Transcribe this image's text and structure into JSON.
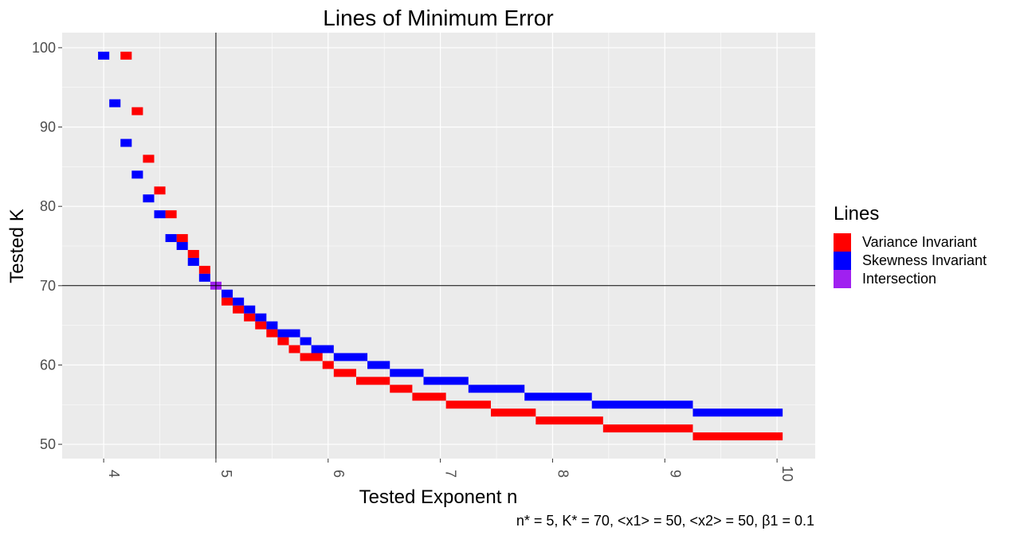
{
  "chart_data": {
    "type": "heatmap",
    "title": "Lines of Minimum Error",
    "xlabel": "Tested Exponent n",
    "ylabel": "Tested K",
    "xlim": [
      3.63,
      10.34
    ],
    "ylim": [
      48.2,
      101.9
    ],
    "x_ticks": [
      4,
      5,
      6,
      7,
      8,
      9,
      10
    ],
    "y_ticks": [
      50,
      60,
      70,
      80,
      90,
      100
    ],
    "x_tick_rotation": "vertical",
    "grid": true,
    "reference_lines": {
      "vertical_x": 5,
      "horizontal_y": 70
    },
    "legend": {
      "title": "Lines",
      "position": "right",
      "entries": [
        {
          "label": "Variance Invariant",
          "color": "#ff0000"
        },
        {
          "label": "Skewness Invariant",
          "color": "#0000ff"
        },
        {
          "label": "Intersection",
          "color": "#a020f0"
        }
      ]
    },
    "caption": "n* = 5, K* = 70, <x1> = 50, <x2> = 50, β1 = 0.1",
    "cell_height": 1,
    "cell_width": 0.1,
    "series": [
      {
        "name": "Variance Invariant",
        "color": "#ff0000",
        "segments": [
          {
            "k": 99,
            "x0": 4.15,
            "x1": 4.25
          },
          {
            "k": 92,
            "x0": 4.25,
            "x1": 4.35
          },
          {
            "k": 86,
            "x0": 4.35,
            "x1": 4.45
          },
          {
            "k": 82,
            "x0": 4.45,
            "x1": 4.55
          },
          {
            "k": 79,
            "x0": 4.55,
            "x1": 4.65
          },
          {
            "k": 76,
            "x0": 4.65,
            "x1": 4.75
          },
          {
            "k": 74,
            "x0": 4.75,
            "x1": 4.85
          },
          {
            "k": 72,
            "x0": 4.85,
            "x1": 4.95
          },
          {
            "k": 68,
            "x0": 5.05,
            "x1": 5.15
          },
          {
            "k": 67,
            "x0": 5.15,
            "x1": 5.25
          },
          {
            "k": 66,
            "x0": 5.25,
            "x1": 5.35
          },
          {
            "k": 65,
            "x0": 5.35,
            "x1": 5.45
          },
          {
            "k": 64,
            "x0": 5.45,
            "x1": 5.55
          },
          {
            "k": 63,
            "x0": 5.55,
            "x1": 5.65
          },
          {
            "k": 62,
            "x0": 5.65,
            "x1": 5.75
          },
          {
            "k": 61,
            "x0": 5.75,
            "x1": 5.95
          },
          {
            "k": 60,
            "x0": 5.95,
            "x1": 6.05
          },
          {
            "k": 59,
            "x0": 6.05,
            "x1": 6.25
          },
          {
            "k": 58,
            "x0": 6.25,
            "x1": 6.55
          },
          {
            "k": 57,
            "x0": 6.55,
            "x1": 6.75
          },
          {
            "k": 56,
            "x0": 6.75,
            "x1": 7.05
          },
          {
            "k": 55,
            "x0": 7.05,
            "x1": 7.45
          },
          {
            "k": 54,
            "x0": 7.45,
            "x1": 7.85
          },
          {
            "k": 53,
            "x0": 7.85,
            "x1": 8.45
          },
          {
            "k": 52,
            "x0": 8.45,
            "x1": 9.25
          },
          {
            "k": 51,
            "x0": 9.25,
            "x1": 10.05
          }
        ]
      },
      {
        "name": "Skewness Invariant",
        "color": "#0000ff",
        "segments": [
          {
            "k": 99,
            "x0": 3.95,
            "x1": 4.05
          },
          {
            "k": 93,
            "x0": 4.05,
            "x1": 4.15
          },
          {
            "k": 88,
            "x0": 4.15,
            "x1": 4.25
          },
          {
            "k": 84,
            "x0": 4.25,
            "x1": 4.35
          },
          {
            "k": 81,
            "x0": 4.35,
            "x1": 4.45
          },
          {
            "k": 79,
            "x0": 4.45,
            "x1": 4.55
          },
          {
            "k": 76,
            "x0": 4.55,
            "x1": 4.65
          },
          {
            "k": 75,
            "x0": 4.65,
            "x1": 4.75
          },
          {
            "k": 73,
            "x0": 4.75,
            "x1": 4.85
          },
          {
            "k": 71,
            "x0": 4.85,
            "x1": 4.95
          },
          {
            "k": 69,
            "x0": 5.05,
            "x1": 5.15
          },
          {
            "k": 68,
            "x0": 5.15,
            "x1": 5.25
          },
          {
            "k": 67,
            "x0": 5.25,
            "x1": 5.35
          },
          {
            "k": 66,
            "x0": 5.35,
            "x1": 5.45
          },
          {
            "k": 65,
            "x0": 5.45,
            "x1": 5.55
          },
          {
            "k": 64,
            "x0": 5.55,
            "x1": 5.75
          },
          {
            "k": 63,
            "x0": 5.75,
            "x1": 5.85
          },
          {
            "k": 62,
            "x0": 5.85,
            "x1": 6.05
          },
          {
            "k": 61,
            "x0": 6.05,
            "x1": 6.35
          },
          {
            "k": 60,
            "x0": 6.35,
            "x1": 6.55
          },
          {
            "k": 59,
            "x0": 6.55,
            "x1": 6.85
          },
          {
            "k": 58,
            "x0": 6.85,
            "x1": 7.25
          },
          {
            "k": 57,
            "x0": 7.25,
            "x1": 7.75
          },
          {
            "k": 56,
            "x0": 7.75,
            "x1": 8.35
          },
          {
            "k": 55,
            "x0": 8.35,
            "x1": 9.25
          },
          {
            "k": 54,
            "x0": 9.25,
            "x1": 10.05
          }
        ]
      },
      {
        "name": "Intersection",
        "color": "#a020f0",
        "segments": [
          {
            "k": 70,
            "x0": 4.95,
            "x1": 5.05
          }
        ]
      }
    ]
  }
}
